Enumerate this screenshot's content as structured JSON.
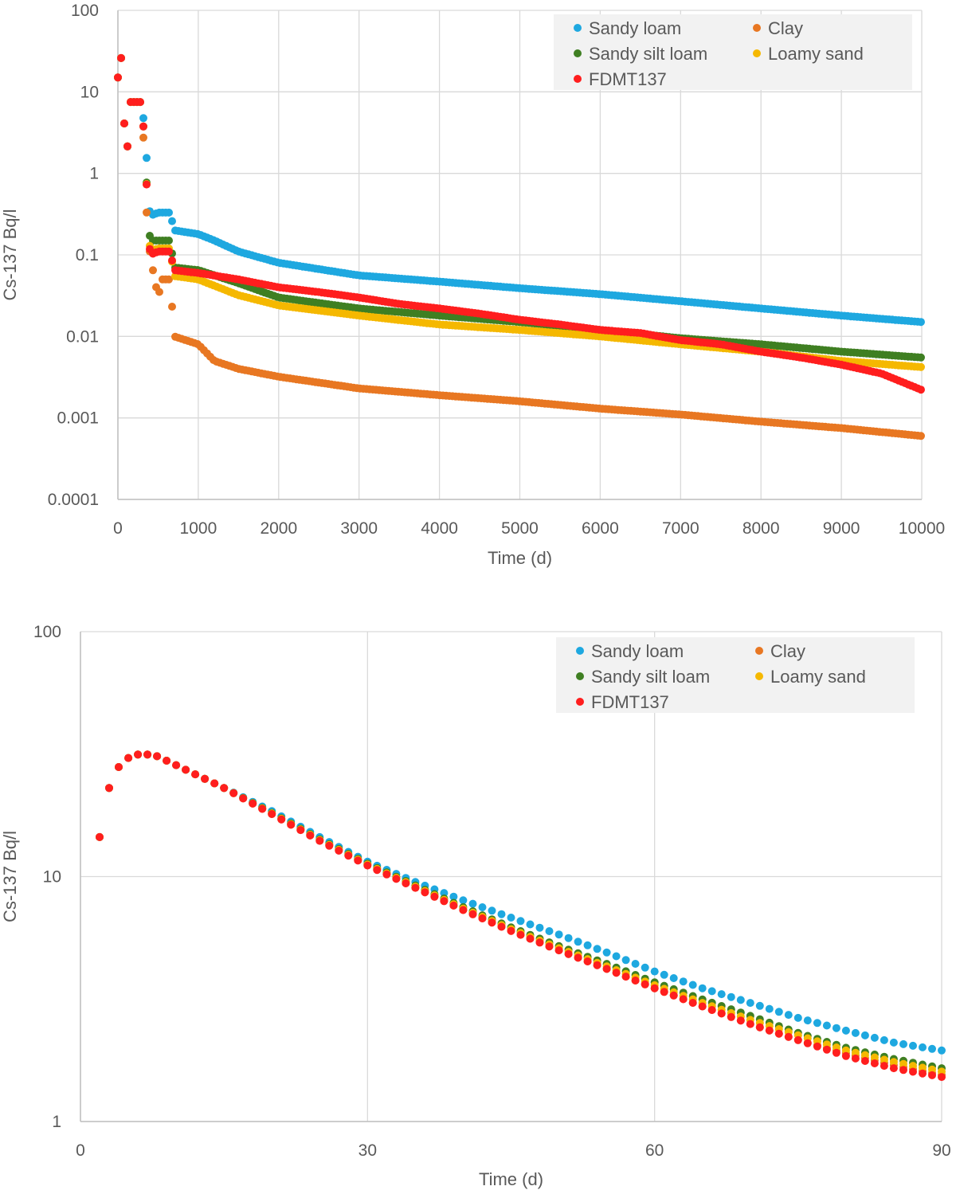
{
  "chart_data": [
    {
      "type": "scatter",
      "title": "",
      "xlabel": "Time (d)",
      "ylabel": "Cs-137 Bq/l",
      "xlim": [
        0,
        10000
      ],
      "ylim": [
        0.0001,
        100
      ],
      "yscale": "log",
      "grid": true,
      "legend_position": "top-right",
      "x_ticks": [
        0,
        1000,
        2000,
        3000,
        4000,
        5000,
        6000,
        7000,
        8000,
        9000,
        10000
      ],
      "x_tick_labels": [
        "0",
        "1000",
        "2000",
        "3000",
        "4000",
        "5000",
        "6000",
        "7000",
        "8000",
        "9000",
        "10000"
      ],
      "y_ticks": [
        0.0001,
        0.001,
        0.01,
        0.1,
        1,
        10,
        100
      ],
      "y_tick_labels": [
        "0.0001",
        "0.001",
        "0.01",
        "0.1",
        "1",
        "10",
        "100"
      ],
      "series": [
        {
          "name": "Sandy loam",
          "color": "#1EA8E0",
          "x": [
            0,
            50,
            100,
            150,
            200,
            300,
            350,
            400,
            500,
            650,
            700,
            1000,
            1200,
            1500,
            2000,
            3000,
            4000,
            5000,
            6000,
            7000,
            8000,
            9000,
            10000
          ],
          "y": [
            15,
            30,
            1.0,
            7.5,
            7.5,
            7.5,
            2.0,
            0.3,
            0.33,
            0.33,
            0.2,
            0.18,
            0.15,
            0.11,
            0.08,
            0.056,
            0.047,
            0.039,
            0.033,
            0.027,
            0.022,
            0.018,
            0.015
          ]
        },
        {
          "name": "Clay",
          "color": "#E87722",
          "x": [
            0,
            50,
            100,
            150,
            200,
            300,
            350,
            400,
            500,
            550,
            650,
            700,
            1000,
            1200,
            1500,
            2000,
            3000,
            4000,
            5000,
            6000,
            7000,
            8000,
            9000,
            10000
          ],
          "y": [
            15,
            30,
            1.0,
            7.5,
            7.5,
            7.5,
            0.4,
            0.1,
            0.03,
            0.05,
            0.05,
            0.01,
            0.008,
            0.005,
            0.004,
            0.0032,
            0.0023,
            0.0019,
            0.0016,
            0.0013,
            0.0011,
            0.0009,
            0.00075,
            0.0006
          ]
        },
        {
          "name": "Sandy silt loam",
          "color": "#3F7F22",
          "x": [
            0,
            50,
            100,
            150,
            200,
            300,
            350,
            400,
            500,
            650,
            700,
            1000,
            1500,
            2000,
            3000,
            4000,
            5000,
            6000,
            7000,
            8000,
            9000,
            10000
          ],
          "y": [
            15,
            30,
            1.0,
            7.5,
            7.5,
            7.5,
            1.0,
            0.15,
            0.15,
            0.15,
            0.07,
            0.065,
            0.045,
            0.03,
            0.022,
            0.018,
            0.015,
            0.012,
            0.0095,
            0.008,
            0.0065,
            0.0055
          ]
        },
        {
          "name": "Loamy sand",
          "color": "#F5B800",
          "x": [
            0,
            50,
            100,
            150,
            200,
            300,
            350,
            400,
            500,
            650,
            700,
            1000,
            1500,
            2000,
            3000,
            4000,
            5000,
            6000,
            7000,
            8000,
            9000,
            10000
          ],
          "y": [
            15,
            30,
            1.0,
            7.5,
            7.5,
            7.5,
            1.0,
            0.11,
            0.12,
            0.12,
            0.055,
            0.05,
            0.032,
            0.024,
            0.018,
            0.014,
            0.012,
            0.01,
            0.008,
            0.0065,
            0.005,
            0.0042
          ]
        },
        {
          "name": "FDMT137",
          "color": "#FF1E1E",
          "x": [
            0,
            50,
            100,
            150,
            200,
            300,
            350,
            400,
            500,
            650,
            700,
            1000,
            1500,
            2000,
            2500,
            3000,
            3500,
            4000,
            4500,
            5000,
            5500,
            6000,
            6500,
            7000,
            7500,
            8000,
            8500,
            9000,
            9500,
            10000
          ],
          "y": [
            15,
            30,
            1.0,
            7.5,
            7.5,
            7.5,
            1.0,
            0.1,
            0.11,
            0.11,
            0.065,
            0.06,
            0.05,
            0.04,
            0.035,
            0.03,
            0.025,
            0.022,
            0.019,
            0.016,
            0.014,
            0.012,
            0.011,
            0.009,
            0.008,
            0.0065,
            0.0055,
            0.0045,
            0.0035,
            0.0022
          ]
        }
      ]
    },
    {
      "type": "scatter",
      "title": "",
      "xlabel": "Time (d)",
      "ylabel": "Cs-137 Bq/l",
      "xlim": [
        0,
        90
      ],
      "ylim": [
        1,
        100
      ],
      "yscale": "log",
      "grid": true,
      "legend_position": "top-right",
      "x_ticks": [
        0,
        30,
        60,
        90
      ],
      "x_tick_labels": [
        "0",
        "30",
        "60",
        "90"
      ],
      "y_ticks": [
        1,
        10,
        100
      ],
      "y_tick_labels": [
        "1",
        "10",
        "100"
      ],
      "series": [
        {
          "name": "Sandy loam",
          "color": "#1EA8E0",
          "x": [
            2,
            3,
            4,
            5,
            6,
            7,
            8,
            10,
            15,
            20,
            25,
            30,
            35,
            40,
            45,
            50,
            55,
            60,
            65,
            70,
            75,
            80,
            85,
            90
          ],
          "y": [
            14.5,
            23,
            28,
            30.5,
            31.5,
            31.5,
            31,
            28.5,
            23,
            18.5,
            14.5,
            11.5,
            9.5,
            8.0,
            6.8,
            5.8,
            4.9,
            4.1,
            3.5,
            3.05,
            2.65,
            2.35,
            2.1,
            1.95
          ]
        },
        {
          "name": "Clay",
          "color": "#E87722",
          "x": [
            2,
            3,
            4,
            5,
            6,
            7,
            8,
            10,
            15,
            20,
            25,
            30,
            35,
            40,
            45,
            50,
            55,
            60,
            65,
            70,
            75,
            80,
            85,
            90
          ],
          "y": [
            14.5,
            23,
            28,
            30.5,
            31.5,
            31.5,
            31,
            28.5,
            23,
            18,
            14,
            11.2,
            9.0,
            7.3,
            6.0,
            5.0,
            4.2,
            3.5,
            2.95,
            2.5,
            2.15,
            1.9,
            1.7,
            1.55
          ]
        },
        {
          "name": "Sandy silt loam",
          "color": "#3F7F22",
          "x": [
            2,
            3,
            4,
            5,
            6,
            7,
            8,
            10,
            15,
            20,
            25,
            30,
            35,
            40,
            45,
            50,
            55,
            60,
            65,
            70,
            75,
            80,
            85,
            90
          ],
          "y": [
            14.5,
            23,
            28,
            30.5,
            31.5,
            31.5,
            31,
            28.5,
            23,
            18.2,
            14.2,
            11.3,
            9.2,
            7.5,
            6.2,
            5.2,
            4.4,
            3.7,
            3.15,
            2.7,
            2.3,
            2.0,
            1.8,
            1.65
          ]
        },
        {
          "name": "Loamy sand",
          "color": "#F5B800",
          "x": [
            2,
            3,
            4,
            5,
            6,
            7,
            8,
            10,
            15,
            20,
            25,
            30,
            35,
            40,
            45,
            50,
            55,
            60,
            65,
            70,
            75,
            80,
            85,
            90
          ],
          "y": [
            14.5,
            23,
            28,
            30.5,
            31.5,
            31.5,
            31,
            28.5,
            23,
            18.1,
            14.1,
            11.2,
            9.1,
            7.4,
            6.1,
            5.1,
            4.3,
            3.6,
            3.05,
            2.6,
            2.25,
            1.95,
            1.75,
            1.6
          ]
        },
        {
          "name": "FDMT137",
          "color": "#FF1E1E",
          "x": [
            2,
            3,
            4,
            5,
            6,
            7,
            8,
            10,
            15,
            20,
            25,
            30,
            35,
            40,
            45,
            50,
            55,
            60,
            65,
            70,
            75,
            80,
            85,
            90
          ],
          "y": [
            14.5,
            23,
            28,
            30.5,
            31.5,
            31.5,
            31,
            28.5,
            23,
            18,
            14,
            11.1,
            9.0,
            7.3,
            6.0,
            5.0,
            4.2,
            3.5,
            2.95,
            2.5,
            2.15,
            1.85,
            1.65,
            1.52
          ]
        }
      ]
    }
  ]
}
